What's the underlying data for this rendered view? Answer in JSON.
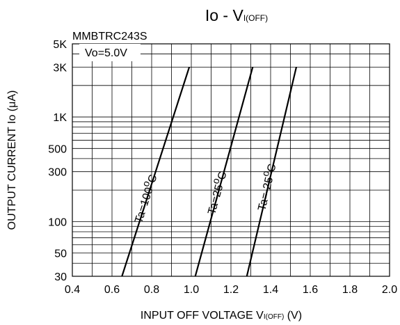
{
  "chart_data": {
    "type": "line",
    "title": "Io - V",
    "title_subscript": "I(OFF)",
    "part_number": "MMBTRC243S",
    "condition": "Vo=5.0V",
    "xlabel": "INPUT OFF VOLTAGE V",
    "xlabel_subscript": "I(OFF)",
    "xlabel_unit": " (V)",
    "ylabel": "OUTPUT CURRENT Io (μA)",
    "x_scale": "linear",
    "y_scale": "log",
    "xlim": [
      0.4,
      2.0
    ],
    "ylim": [
      30,
      5000
    ],
    "x_ticks": [
      0.4,
      0.6,
      0.8,
      1.0,
      1.2,
      1.4,
      1.6,
      1.8,
      2.0
    ],
    "x_tick_labels": [
      "0.4",
      "0.6",
      "0.8",
      "1.0",
      "1.2",
      "1.4",
      "1.6",
      "1.8",
      "2.0"
    ],
    "y_ticks": [
      30,
      50,
      100,
      300,
      500,
      1000,
      3000,
      5000
    ],
    "y_tick_labels": [
      "30",
      "50",
      "100",
      "300",
      "500",
      "1K",
      "3K",
      "5K"
    ],
    "grid": true,
    "series": [
      {
        "name": "Ta=100°C",
        "label_parts": [
          "Ta=100",
          "o",
          "C"
        ],
        "x": [
          0.65,
          0.99
        ],
        "y": [
          30,
          3000
        ]
      },
      {
        "name": "Ta=25°C",
        "label_parts": [
          "Ta=25",
          "o",
          "C"
        ],
        "x": [
          1.02,
          1.31
        ],
        "y": [
          30,
          3000
        ]
      },
      {
        "name": "Ta=-25°C",
        "label_parts": [
          "Ta=-25",
          "o",
          "C"
        ],
        "x": [
          1.28,
          1.53
        ],
        "y": [
          30,
          3000
        ]
      }
    ]
  }
}
